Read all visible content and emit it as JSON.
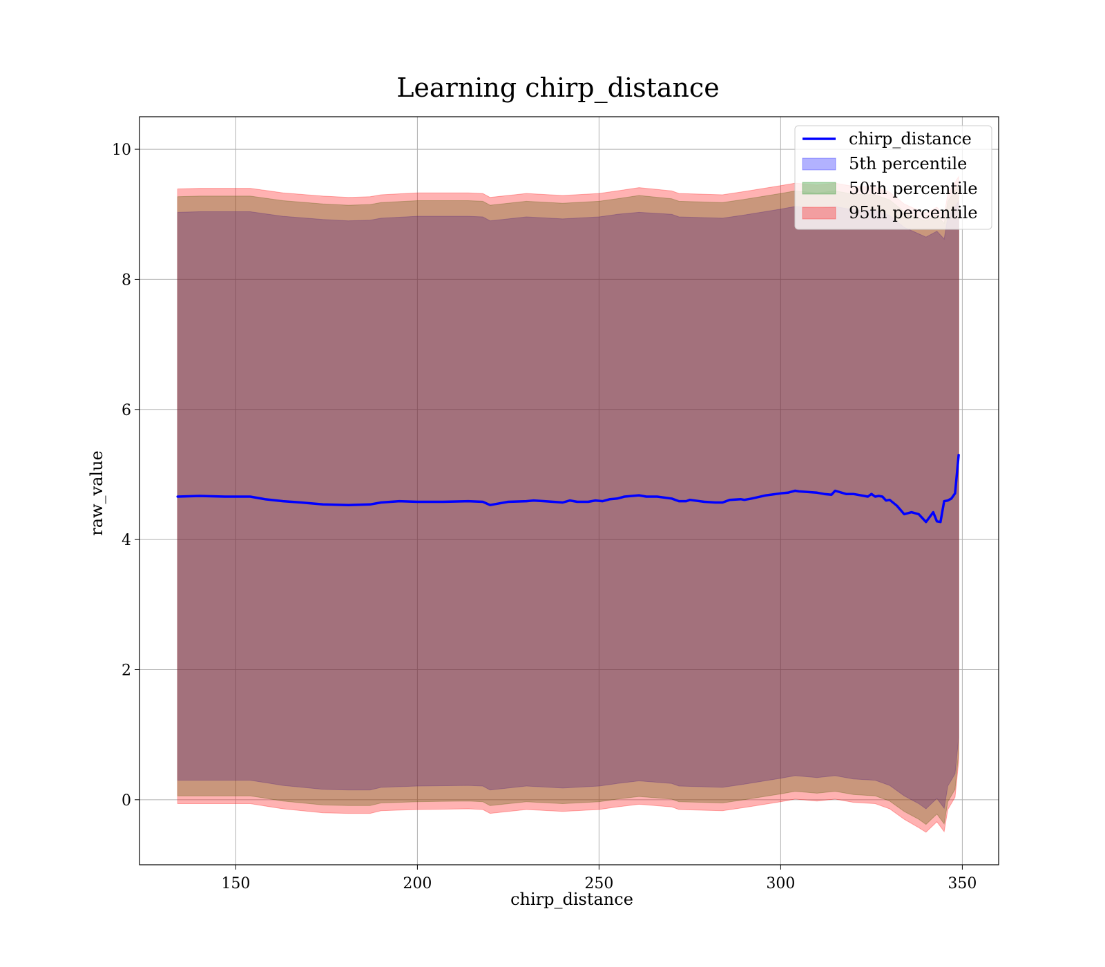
{
  "chart_data": {
    "type": "line",
    "title": "Learning chirp_distance",
    "xlabel": "chirp_distance",
    "ylabel": "raw_value",
    "xlim": [
      123.5,
      360
    ],
    "ylim": [
      -1,
      10.5
    ],
    "xticks": [
      150,
      200,
      250,
      300,
      350
    ],
    "yticks": [
      0,
      2,
      4,
      6,
      8,
      10
    ],
    "xtick_labels": [
      "150",
      "200",
      "250",
      "300",
      "350"
    ],
    "ytick_labels": [
      "0",
      "2",
      "4",
      "6",
      "8",
      "10"
    ],
    "grid": true,
    "legend_position": "top-right",
    "legend": [
      "chirp_distance",
      "5th percentile",
      "50th percentile",
      "95th percentile"
    ],
    "line": {
      "name": "chirp_distance",
      "color": "#0000ff",
      "points": [
        [
          134,
          4.66
        ],
        [
          140,
          4.67
        ],
        [
          147,
          4.66
        ],
        [
          154,
          4.66
        ],
        [
          158,
          4.62
        ],
        [
          163,
          4.59
        ],
        [
          168,
          4.57
        ],
        [
          174,
          4.54
        ],
        [
          181,
          4.53
        ],
        [
          187,
          4.54
        ],
        [
          190,
          4.57
        ],
        [
          195,
          4.59
        ],
        [
          200,
          4.58
        ],
        [
          207,
          4.58
        ],
        [
          214,
          4.59
        ],
        [
          218,
          4.58
        ],
        [
          220,
          4.53
        ],
        [
          222,
          4.55
        ],
        [
          225,
          4.58
        ],
        [
          230,
          4.59
        ],
        [
          232,
          4.6
        ],
        [
          235,
          4.59
        ],
        [
          240,
          4.57
        ],
        [
          242,
          4.6
        ],
        [
          244,
          4.58
        ],
        [
          247,
          4.58
        ],
        [
          249,
          4.6
        ],
        [
          251,
          4.59
        ],
        [
          253,
          4.62
        ],
        [
          255,
          4.63
        ],
        [
          257,
          4.66
        ],
        [
          261,
          4.68
        ],
        [
          263,
          4.66
        ],
        [
          266,
          4.66
        ],
        [
          270,
          4.63
        ],
        [
          272,
          4.59
        ],
        [
          274,
          4.59
        ],
        [
          275,
          4.61
        ],
        [
          279,
          4.58
        ],
        [
          282,
          4.57
        ],
        [
          284,
          4.57
        ],
        [
          286,
          4.61
        ],
        [
          289,
          4.62
        ],
        [
          290,
          4.61
        ],
        [
          292,
          4.63
        ],
        [
          296,
          4.68
        ],
        [
          300,
          4.71
        ],
        [
          302,
          4.72
        ],
        [
          304,
          4.75
        ],
        [
          305,
          4.74
        ],
        [
          310,
          4.72
        ],
        [
          312,
          4.7
        ],
        [
          314,
          4.69
        ],
        [
          315,
          4.75
        ],
        [
          318,
          4.7
        ],
        [
          320,
          4.7
        ],
        [
          323,
          4.67
        ],
        [
          324,
          4.66
        ],
        [
          325,
          4.7
        ],
        [
          326,
          4.66
        ],
        [
          327,
          4.67
        ],
        [
          328,
          4.66
        ],
        [
          329,
          4.6
        ],
        [
          330,
          4.61
        ],
        [
          332,
          4.52
        ],
        [
          334,
          4.39
        ],
        [
          336,
          4.42
        ],
        [
          338,
          4.39
        ],
        [
          340,
          4.27
        ],
        [
          342,
          4.42
        ],
        [
          343,
          4.28
        ],
        [
          344,
          4.27
        ],
        [
          345,
          4.59
        ],
        [
          346,
          4.6
        ],
        [
          347,
          4.63
        ],
        [
          348,
          4.71
        ],
        [
          349,
          5.3
        ]
      ]
    },
    "series": [
      {
        "name": "5th percentile",
        "color": "#0000ff",
        "opacity": 0.3,
        "upper": [
          [
            134,
            9.03
          ],
          [
            140,
            9.04
          ],
          [
            154,
            9.04
          ],
          [
            163,
            8.97
          ],
          [
            174,
            8.92
          ],
          [
            181,
            8.9
          ],
          [
            187,
            8.91
          ],
          [
            190,
            8.94
          ],
          [
            200,
            8.97
          ],
          [
            214,
            8.97
          ],
          [
            218,
            8.96
          ],
          [
            220,
            8.9
          ],
          [
            230,
            8.96
          ],
          [
            240,
            8.93
          ],
          [
            250,
            8.96
          ],
          [
            255,
            9.0
          ],
          [
            261,
            9.03
          ],
          [
            270,
            9.0
          ],
          [
            272,
            8.96
          ],
          [
            284,
            8.94
          ],
          [
            290,
            8.99
          ],
          [
            300,
            9.08
          ],
          [
            304,
            9.12
          ],
          [
            310,
            9.09
          ],
          [
            315,
            9.12
          ],
          [
            320,
            9.07
          ],
          [
            326,
            9.06
          ],
          [
            330,
            8.98
          ],
          [
            334,
            8.8
          ],
          [
            338,
            8.7
          ],
          [
            340,
            8.65
          ],
          [
            343,
            8.74
          ],
          [
            345,
            8.62
          ],
          [
            346,
            8.96
          ],
          [
            349,
            9.2
          ]
        ],
        "lower": [
          [
            134,
            0.3
          ],
          [
            140,
            0.3
          ],
          [
            154,
            0.3
          ],
          [
            163,
            0.22
          ],
          [
            174,
            0.16
          ],
          [
            181,
            0.15
          ],
          [
            187,
            0.15
          ],
          [
            190,
            0.19
          ],
          [
            200,
            0.21
          ],
          [
            214,
            0.22
          ],
          [
            218,
            0.21
          ],
          [
            220,
            0.15
          ],
          [
            230,
            0.21
          ],
          [
            240,
            0.18
          ],
          [
            250,
            0.21
          ],
          [
            255,
            0.25
          ],
          [
            261,
            0.29
          ],
          [
            270,
            0.25
          ],
          [
            272,
            0.21
          ],
          [
            284,
            0.19
          ],
          [
            290,
            0.24
          ],
          [
            300,
            0.33
          ],
          [
            304,
            0.37
          ],
          [
            310,
            0.34
          ],
          [
            315,
            0.37
          ],
          [
            320,
            0.32
          ],
          [
            326,
            0.3
          ],
          [
            330,
            0.22
          ],
          [
            334,
            0.06
          ],
          [
            338,
            -0.06
          ],
          [
            340,
            -0.14
          ],
          [
            343,
            0.02
          ],
          [
            345,
            -0.13
          ],
          [
            346,
            0.21
          ],
          [
            348,
            0.4
          ],
          [
            349,
            0.95
          ]
        ]
      },
      {
        "name": "50th percentile",
        "color": "#008000",
        "opacity": 0.3,
        "upper": [
          [
            134,
            9.27
          ],
          [
            140,
            9.28
          ],
          [
            154,
            9.28
          ],
          [
            163,
            9.21
          ],
          [
            174,
            9.16
          ],
          [
            181,
            9.14
          ],
          [
            187,
            9.15
          ],
          [
            190,
            9.18
          ],
          [
            200,
            9.21
          ],
          [
            214,
            9.21
          ],
          [
            218,
            9.2
          ],
          [
            220,
            9.14
          ],
          [
            230,
            9.2
          ],
          [
            240,
            9.17
          ],
          [
            250,
            9.2
          ],
          [
            255,
            9.24
          ],
          [
            261,
            9.29
          ],
          [
            270,
            9.24
          ],
          [
            272,
            9.2
          ],
          [
            284,
            9.18
          ],
          [
            290,
            9.23
          ],
          [
            300,
            9.32
          ],
          [
            304,
            9.36
          ],
          [
            310,
            9.33
          ],
          [
            315,
            9.36
          ],
          [
            320,
            9.31
          ],
          [
            326,
            9.3
          ],
          [
            330,
            9.22
          ],
          [
            334,
            9.04
          ],
          [
            338,
            8.94
          ],
          [
            340,
            8.9
          ],
          [
            343,
            8.99
          ],
          [
            345,
            8.86
          ],
          [
            346,
            9.2
          ],
          [
            349,
            9.45
          ]
        ],
        "lower": [
          [
            134,
            0.06
          ],
          [
            140,
            0.06
          ],
          [
            154,
            0.06
          ],
          [
            163,
            -0.02
          ],
          [
            174,
            -0.08
          ],
          [
            181,
            -0.09
          ],
          [
            187,
            -0.09
          ],
          [
            190,
            -0.05
          ],
          [
            200,
            -0.03
          ],
          [
            214,
            -0.02
          ],
          [
            218,
            -0.03
          ],
          [
            220,
            -0.09
          ],
          [
            230,
            -0.03
          ],
          [
            240,
            -0.06
          ],
          [
            250,
            -0.03
          ],
          [
            255,
            0.01
          ],
          [
            261,
            0.05
          ],
          [
            270,
            0.01
          ],
          [
            272,
            -0.03
          ],
          [
            284,
            -0.05
          ],
          [
            290,
            0.0
          ],
          [
            300,
            0.09
          ],
          [
            304,
            0.13
          ],
          [
            310,
            0.1
          ],
          [
            315,
            0.13
          ],
          [
            320,
            0.08
          ],
          [
            326,
            0.06
          ],
          [
            330,
            -0.02
          ],
          [
            334,
            -0.18
          ],
          [
            338,
            -0.3
          ],
          [
            340,
            -0.38
          ],
          [
            343,
            -0.22
          ],
          [
            345,
            -0.37
          ],
          [
            346,
            -0.03
          ],
          [
            348,
            0.16
          ],
          [
            349,
            0.7
          ]
        ]
      },
      {
        "name": "95th percentile",
        "color": "#ff0000",
        "opacity": 0.3,
        "upper": [
          [
            134,
            9.39
          ],
          [
            140,
            9.4
          ],
          [
            154,
            9.4
          ],
          [
            163,
            9.33
          ],
          [
            174,
            9.28
          ],
          [
            181,
            9.26
          ],
          [
            187,
            9.27
          ],
          [
            190,
            9.3
          ],
          [
            200,
            9.33
          ],
          [
            214,
            9.33
          ],
          [
            218,
            9.32
          ],
          [
            220,
            9.26
          ],
          [
            230,
            9.32
          ],
          [
            240,
            9.29
          ],
          [
            250,
            9.32
          ],
          [
            255,
            9.36
          ],
          [
            261,
            9.41
          ],
          [
            270,
            9.36
          ],
          [
            272,
            9.32
          ],
          [
            284,
            9.3
          ],
          [
            290,
            9.35
          ],
          [
            300,
            9.44
          ],
          [
            304,
            9.48
          ],
          [
            310,
            9.45
          ],
          [
            315,
            9.48
          ],
          [
            320,
            9.43
          ],
          [
            326,
            9.42
          ],
          [
            330,
            9.34
          ],
          [
            334,
            9.16
          ],
          [
            338,
            9.06
          ],
          [
            340,
            9.02
          ],
          [
            343,
            9.11
          ],
          [
            345,
            8.98
          ],
          [
            346,
            9.32
          ],
          [
            349,
            9.58
          ]
        ],
        "lower": [
          [
            134,
            -0.06
          ],
          [
            140,
            -0.06
          ],
          [
            154,
            -0.06
          ],
          [
            163,
            -0.14
          ],
          [
            174,
            -0.2
          ],
          [
            181,
            -0.21
          ],
          [
            187,
            -0.21
          ],
          [
            190,
            -0.17
          ],
          [
            200,
            -0.15
          ],
          [
            214,
            -0.14
          ],
          [
            218,
            -0.15
          ],
          [
            220,
            -0.21
          ],
          [
            230,
            -0.15
          ],
          [
            240,
            -0.18
          ],
          [
            250,
            -0.15
          ],
          [
            255,
            -0.11
          ],
          [
            261,
            -0.07
          ],
          [
            270,
            -0.11
          ],
          [
            272,
            -0.15
          ],
          [
            284,
            -0.17
          ],
          [
            290,
            -0.12
          ],
          [
            300,
            -0.03
          ],
          [
            304,
            0.01
          ],
          [
            310,
            -0.02
          ],
          [
            315,
            0.01
          ],
          [
            320,
            -0.04
          ],
          [
            326,
            -0.06
          ],
          [
            330,
            -0.14
          ],
          [
            334,
            -0.3
          ],
          [
            338,
            -0.43
          ],
          [
            340,
            -0.5
          ],
          [
            343,
            -0.34
          ],
          [
            345,
            -0.49
          ],
          [
            346,
            -0.15
          ],
          [
            348,
            0.04
          ],
          [
            349,
            0.58
          ]
        ]
      }
    ]
  }
}
